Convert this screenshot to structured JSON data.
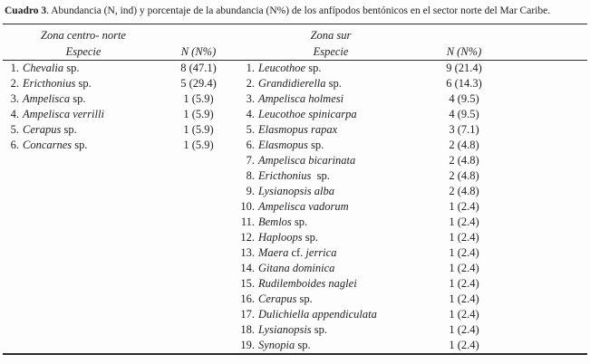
{
  "title": {
    "label": "Cuadro 3",
    "rest": ". Abundancia (N, ind) y porcentaje de la abundancia (N%) de los anfípodos bentónicos en el sector norte del Mar Caribe."
  },
  "table": {
    "header": {
      "left_zone": "Zona centro- norte",
      "left_especie": "Especie",
      "left_n": "N (N%)",
      "right_zone": "Zona sur",
      "right_especie": "Especie",
      "right_n": "N (N%)"
    },
    "left_rows": [
      {
        "num": "1.",
        "name": [
          {
            "text": "Chevalia",
            "italic": true
          },
          {
            "text": " sp.",
            "italic": false
          }
        ],
        "value": "8 (47.1)"
      },
      {
        "num": "2.",
        "name": [
          {
            "text": "Ericthonius",
            "italic": true
          },
          {
            "text": " sp.",
            "italic": false
          }
        ],
        "value": "5 (29.4)"
      },
      {
        "num": "3.",
        "name": [
          {
            "text": "Ampelisca",
            "italic": true
          },
          {
            "text": " sp.",
            "italic": false
          }
        ],
        "value": "1 (5.9)"
      },
      {
        "num": "4.",
        "name": [
          {
            "text": "Ampelisca verrilli",
            "italic": true
          }
        ],
        "value": "1 (5.9)"
      },
      {
        "num": "5.",
        "name": [
          {
            "text": "Cerapus",
            "italic": true
          },
          {
            "text": " sp.",
            "italic": false
          }
        ],
        "value": "1 (5.9)"
      },
      {
        "num": "6.",
        "name": [
          {
            "text": "Concarnes",
            "italic": true
          },
          {
            "text": " sp.",
            "italic": false
          }
        ],
        "value": "1 (5.9)"
      }
    ],
    "right_rows": [
      {
        "num": "1.",
        "name": [
          {
            "text": "Leucothoe",
            "italic": true
          },
          {
            "text": " sp.",
            "italic": false
          }
        ],
        "value": "9 (21.4)"
      },
      {
        "num": "2.",
        "name": [
          {
            "text": "Grandidierella",
            "italic": true
          },
          {
            "text": " sp.",
            "italic": false
          }
        ],
        "value": "6 (14.3)"
      },
      {
        "num": "3.",
        "name": [
          {
            "text": "Ampelisca holmesi",
            "italic": true
          }
        ],
        "value": "4 (9.5)"
      },
      {
        "num": "4.",
        "name": [
          {
            "text": "Leucothoe spinicarpa",
            "italic": true
          }
        ],
        "value": "4 (9.5)"
      },
      {
        "num": "5.",
        "name": [
          {
            "text": "Elasmopus rapax",
            "italic": true
          }
        ],
        "value": "3 (7.1)"
      },
      {
        "num": "6.",
        "name": [
          {
            "text": "Elasmopus",
            "italic": true
          },
          {
            "text": " sp.",
            "italic": false
          }
        ],
        "value": "2 (4.8)"
      },
      {
        "num": "7.",
        "name": [
          {
            "text": "Ampelisca bicarinata",
            "italic": true
          }
        ],
        "value": "2 (4.8)"
      },
      {
        "num": "8.",
        "name": [
          {
            "text": "Ericthonius",
            "italic": true
          },
          {
            "text": "  sp.",
            "italic": false
          }
        ],
        "value": "2 (4.8)"
      },
      {
        "num": "9.",
        "name": [
          {
            "text": "Lysianopsis alba",
            "italic": true
          }
        ],
        "value": "2 (4.8)"
      },
      {
        "num": "10.",
        "name": [
          {
            "text": "Ampelisca vadorum",
            "italic": true
          }
        ],
        "value": "1 (2.4)"
      },
      {
        "num": "11.",
        "name": [
          {
            "text": "Bemlos",
            "italic": true
          },
          {
            "text": " sp.",
            "italic": false
          }
        ],
        "value": "1 (2.4)"
      },
      {
        "num": "12.",
        "name": [
          {
            "text": "Haploops",
            "italic": true
          },
          {
            "text": " sp.",
            "italic": false
          }
        ],
        "value": "1 (2.4)"
      },
      {
        "num": "13.",
        "name": [
          {
            "text": "Maera",
            "italic": true
          },
          {
            "text": " cf. ",
            "italic": false
          },
          {
            "text": "jerrica",
            "italic": true
          }
        ],
        "value": "1 (2.4)"
      },
      {
        "num": "14.",
        "name": [
          {
            "text": "Gitana dominica",
            "italic": true
          }
        ],
        "value": "1 (2.4)"
      },
      {
        "num": "15.",
        "name": [
          {
            "text": "Rudilemboides naglei",
            "italic": true
          }
        ],
        "value": "1 (2.4)"
      },
      {
        "num": "16.",
        "name": [
          {
            "text": "Cerapus",
            "italic": true
          },
          {
            "text": " sp.",
            "italic": false
          }
        ],
        "value": "1 (2.4)"
      },
      {
        "num": "17.",
        "name": [
          {
            "text": "Dulichiella appendiculata",
            "italic": true
          }
        ],
        "value": "1 (2.4)"
      },
      {
        "num": "18.",
        "name": [
          {
            "text": "Lysianopsis",
            "italic": true
          },
          {
            "text": " sp.",
            "italic": false
          }
        ],
        "value": "1 (2.4)"
      },
      {
        "num": "19.",
        "name": [
          {
            "text": "Synopia",
            "italic": true
          },
          {
            "text": " sp.",
            "italic": false
          }
        ],
        "value": "1 (2.4)"
      }
    ]
  },
  "colors": {
    "text": "#222222",
    "rule": "#2b2b2b",
    "background": "#fdfdfd"
  }
}
